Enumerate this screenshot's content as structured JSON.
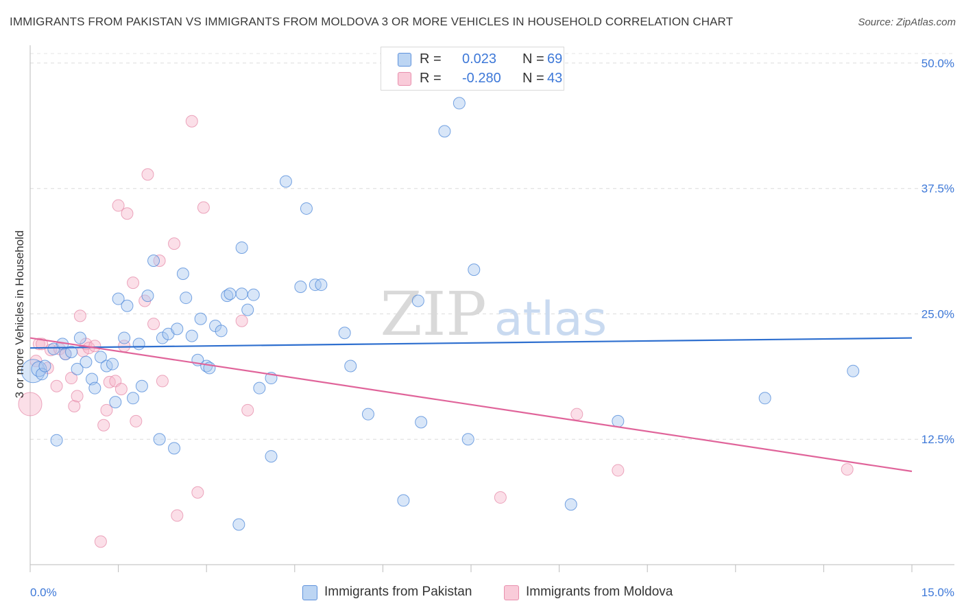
{
  "title": "IMMIGRANTS FROM PAKISTAN VS IMMIGRANTS FROM MOLDOVA 3 OR MORE VEHICLES IN HOUSEHOLD CORRELATION CHART",
  "source": "Source: ZipAtlas.com",
  "watermark": {
    "zip": "ZIP",
    "atlas": "atlas"
  },
  "legend": {
    "rows": [
      {
        "r_label": "R =",
        "r_value": "0.023",
        "n_label": "N =",
        "n_value": "69"
      },
      {
        "r_label": "R =",
        "r_value": "-0.280",
        "n_label": "N =",
        "n_value": "43"
      }
    ]
  },
  "bottom_legend": {
    "series1": "Immigrants from Pakistan",
    "series2": "Immigrants from Moldova"
  },
  "colors": {
    "pakistan_fill": "#a8c8f0",
    "pakistan_stroke": "#4a86d8",
    "pakistan_line": "#2e6fcf",
    "moldova_fill": "#f7b8cb",
    "moldova_stroke": "#e58aa8",
    "moldova_line": "#e0649a",
    "axis_label": "#3d78d8"
  },
  "chart_data": {
    "type": "scatter",
    "title": "IMMIGRANTS FROM PAKISTAN VS IMMIGRANTS FROM MOLDOVA 3 OR MORE VEHICLES IN HOUSEHOLD CORRELATION CHART",
    "xlabel": "",
    "ylabel": "3 or more Vehicles in Household",
    "xlim": [
      0,
      15
    ],
    "ylim": [
      0,
      51.5
    ],
    "x_tick_labels": [
      "0.0%",
      "15.0%"
    ],
    "y_ticks": [
      12.5,
      25.0,
      37.5,
      50.0
    ],
    "y_tick_labels": [
      "12.5%",
      "25.0%",
      "37.5%",
      "50.0%"
    ],
    "grid": "horizontal dashed",
    "series": [
      {
        "name": "Immigrants from Pakistan",
        "r": 0.023,
        "n": 69,
        "trend": {
          "x": [
            0,
            15
          ],
          "y": [
            21.6,
            22.6
          ]
        },
        "points": [
          {
            "x": 0.05,
            "y": 19.3,
            "s": 3
          },
          {
            "x": 0.15,
            "y": 19.5,
            "s": 2
          },
          {
            "x": 0.2,
            "y": 19.0,
            "s": 1
          },
          {
            "x": 0.25,
            "y": 19.8,
            "s": 1
          },
          {
            "x": 0.4,
            "y": 21.5,
            "s": 1
          },
          {
            "x": 0.55,
            "y": 22.0,
            "s": 1
          },
          {
            "x": 0.6,
            "y": 21.0,
            "s": 1
          },
          {
            "x": 0.7,
            "y": 21.2,
            "s": 1
          },
          {
            "x": 0.8,
            "y": 19.5,
            "s": 1
          },
          {
            "x": 0.85,
            "y": 22.6,
            "s": 1
          },
          {
            "x": 0.95,
            "y": 20.2,
            "s": 1
          },
          {
            "x": 1.05,
            "y": 18.5,
            "s": 1
          },
          {
            "x": 1.1,
            "y": 17.6,
            "s": 1
          },
          {
            "x": 1.2,
            "y": 20.7,
            "s": 1
          },
          {
            "x": 1.3,
            "y": 19.8,
            "s": 1
          },
          {
            "x": 1.4,
            "y": 20.0,
            "s": 1
          },
          {
            "x": 1.45,
            "y": 16.2,
            "s": 1
          },
          {
            "x": 1.5,
            "y": 26.5,
            "s": 1
          },
          {
            "x": 1.6,
            "y": 22.6,
            "s": 1
          },
          {
            "x": 1.65,
            "y": 25.8,
            "s": 1
          },
          {
            "x": 1.75,
            "y": 16.6,
            "s": 1
          },
          {
            "x": 1.85,
            "y": 22.0,
            "s": 1
          },
          {
            "x": 1.9,
            "y": 17.8,
            "s": 1
          },
          {
            "x": 2.0,
            "y": 26.8,
            "s": 1
          },
          {
            "x": 2.1,
            "y": 30.3,
            "s": 1
          },
          {
            "x": 2.2,
            "y": 12.5,
            "s": 1
          },
          {
            "x": 2.25,
            "y": 22.6,
            "s": 1
          },
          {
            "x": 2.35,
            "y": 23.0,
            "s": 1
          },
          {
            "x": 2.45,
            "y": 11.6,
            "s": 1
          },
          {
            "x": 2.5,
            "y": 23.5,
            "s": 1
          },
          {
            "x": 2.6,
            "y": 29.0,
            "s": 1
          },
          {
            "x": 2.65,
            "y": 26.6,
            "s": 1
          },
          {
            "x": 2.75,
            "y": 22.8,
            "s": 1
          },
          {
            "x": 2.85,
            "y": 20.4,
            "s": 1
          },
          {
            "x": 2.9,
            "y": 24.5,
            "s": 1
          },
          {
            "x": 3.0,
            "y": 19.8,
            "s": 1
          },
          {
            "x": 3.05,
            "y": 19.6,
            "s": 1
          },
          {
            "x": 3.15,
            "y": 23.8,
            "s": 1
          },
          {
            "x": 3.25,
            "y": 23.3,
            "s": 1
          },
          {
            "x": 3.35,
            "y": 26.8,
            "s": 1
          },
          {
            "x": 3.4,
            "y": 27.0,
            "s": 1
          },
          {
            "x": 3.55,
            "y": 4.0,
            "s": 1
          },
          {
            "x": 3.6,
            "y": 27.0,
            "s": 1
          },
          {
            "x": 3.6,
            "y": 31.6,
            "s": 1
          },
          {
            "x": 3.7,
            "y": 25.4,
            "s": 1
          },
          {
            "x": 3.8,
            "y": 26.9,
            "s": 1
          },
          {
            "x": 3.9,
            "y": 17.6,
            "s": 1
          },
          {
            "x": 4.1,
            "y": 10.8,
            "s": 1
          },
          {
            "x": 4.1,
            "y": 18.6,
            "s": 1
          },
          {
            "x": 4.35,
            "y": 38.2,
            "s": 1
          },
          {
            "x": 4.6,
            "y": 27.7,
            "s": 1
          },
          {
            "x": 4.7,
            "y": 35.5,
            "s": 1
          },
          {
            "x": 4.85,
            "y": 27.9,
            "s": 1
          },
          {
            "x": 4.95,
            "y": 27.9,
            "s": 1
          },
          {
            "x": 5.35,
            "y": 23.1,
            "s": 1
          },
          {
            "x": 5.45,
            "y": 19.8,
            "s": 1
          },
          {
            "x": 5.75,
            "y": 15.0,
            "s": 1
          },
          {
            "x": 6.35,
            "y": 6.4,
            "s": 1
          },
          {
            "x": 6.6,
            "y": 26.3,
            "s": 1
          },
          {
            "x": 6.65,
            "y": 14.2,
            "s": 1
          },
          {
            "x": 7.05,
            "y": 43.2,
            "s": 1
          },
          {
            "x": 7.3,
            "y": 46.0,
            "s": 1
          },
          {
            "x": 7.45,
            "y": 12.5,
            "s": 1
          },
          {
            "x": 7.55,
            "y": 29.4,
            "s": 1
          },
          {
            "x": 0.45,
            "y": 12.4,
            "s": 1
          },
          {
            "x": 9.2,
            "y": 6.0,
            "s": 1
          },
          {
            "x": 10.0,
            "y": 14.3,
            "s": 1
          },
          {
            "x": 12.5,
            "y": 16.6,
            "s": 1
          },
          {
            "x": 14.0,
            "y": 19.3,
            "s": 1
          }
        ]
      },
      {
        "name": "Immigrants from Moldova",
        "r": -0.28,
        "n": 43,
        "trend": {
          "x": [
            0,
            15
          ],
          "y": [
            22.6,
            9.3
          ]
        },
        "points": [
          {
            "x": 0.0,
            "y": 16.0,
            "s": 3
          },
          {
            "x": 0.1,
            "y": 20.3,
            "s": 1
          },
          {
            "x": 0.15,
            "y": 22.0,
            "s": 1
          },
          {
            "x": 0.2,
            "y": 22.0,
            "s": 1
          },
          {
            "x": 0.3,
            "y": 19.6,
            "s": 1
          },
          {
            "x": 0.35,
            "y": 21.4,
            "s": 1
          },
          {
            "x": 0.45,
            "y": 17.8,
            "s": 1
          },
          {
            "x": 0.5,
            "y": 21.5,
            "s": 1
          },
          {
            "x": 0.6,
            "y": 21.0,
            "s": 1
          },
          {
            "x": 0.7,
            "y": 18.6,
            "s": 1
          },
          {
            "x": 0.75,
            "y": 15.8,
            "s": 1
          },
          {
            "x": 0.8,
            "y": 16.8,
            "s": 1
          },
          {
            "x": 0.85,
            "y": 24.8,
            "s": 1
          },
          {
            "x": 0.9,
            "y": 21.3,
            "s": 1
          },
          {
            "x": 0.95,
            "y": 22.0,
            "s": 1
          },
          {
            "x": 1.0,
            "y": 21.6,
            "s": 1
          },
          {
            "x": 1.1,
            "y": 21.8,
            "s": 1
          },
          {
            "x": 1.2,
            "y": 2.3,
            "s": 1
          },
          {
            "x": 1.25,
            "y": 13.9,
            "s": 1
          },
          {
            "x": 1.3,
            "y": 15.4,
            "s": 1
          },
          {
            "x": 1.35,
            "y": 18.2,
            "s": 1
          },
          {
            "x": 1.45,
            "y": 18.3,
            "s": 1
          },
          {
            "x": 1.5,
            "y": 35.8,
            "s": 1
          },
          {
            "x": 1.55,
            "y": 17.5,
            "s": 1
          },
          {
            "x": 1.6,
            "y": 21.8,
            "s": 1
          },
          {
            "x": 1.65,
            "y": 35.0,
            "s": 1
          },
          {
            "x": 1.75,
            "y": 28.1,
            "s": 1
          },
          {
            "x": 1.8,
            "y": 14.3,
            "s": 1
          },
          {
            "x": 1.95,
            "y": 26.3,
            "s": 1
          },
          {
            "x": 2.0,
            "y": 38.9,
            "s": 1
          },
          {
            "x": 2.1,
            "y": 24.0,
            "s": 1
          },
          {
            "x": 2.2,
            "y": 30.3,
            "s": 1
          },
          {
            "x": 2.25,
            "y": 18.3,
            "s": 1
          },
          {
            "x": 2.45,
            "y": 32.0,
            "s": 1
          },
          {
            "x": 2.5,
            "y": 4.9,
            "s": 1
          },
          {
            "x": 2.75,
            "y": 44.2,
            "s": 1
          },
          {
            "x": 2.85,
            "y": 7.2,
            "s": 1
          },
          {
            "x": 2.95,
            "y": 35.6,
            "s": 1
          },
          {
            "x": 3.6,
            "y": 24.3,
            "s": 1
          },
          {
            "x": 3.7,
            "y": 15.4,
            "s": 1
          },
          {
            "x": 8.0,
            "y": 6.7,
            "s": 1
          },
          {
            "x": 9.3,
            "y": 15.0,
            "s": 1
          },
          {
            "x": 10.0,
            "y": 9.4,
            "s": 1
          },
          {
            "x": 13.9,
            "y": 9.5,
            "s": 1
          }
        ]
      }
    ]
  }
}
